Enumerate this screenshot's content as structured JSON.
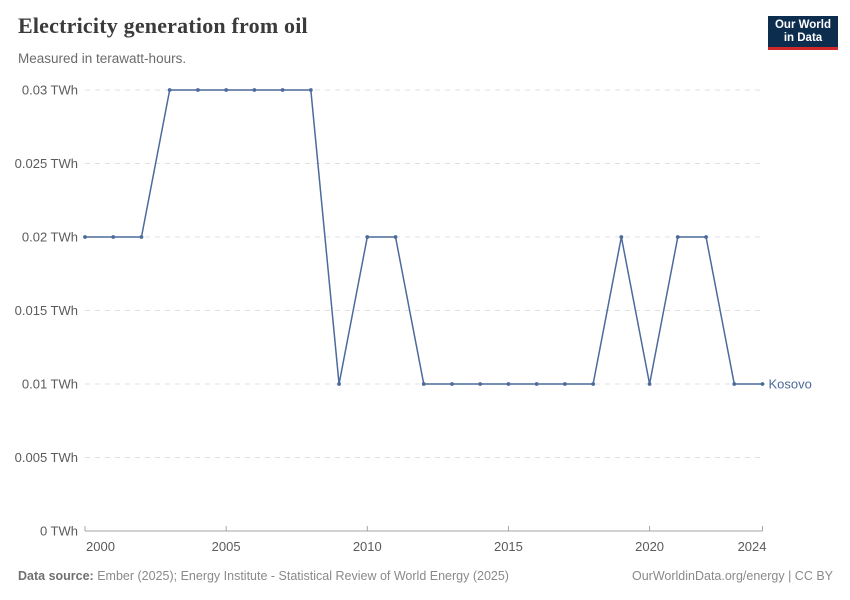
{
  "header": {
    "title": "Electricity generation from oil",
    "subtitle": "Measured in terawatt-hours."
  },
  "logo": {
    "line1": "Our World",
    "line2": "in Data",
    "bg_color": "#0d2d4f",
    "stripe_color": "#cf2a27"
  },
  "chart_data": {
    "type": "line",
    "title": "Electricity generation from oil",
    "subtitle": "Measured in terawatt-hours.",
    "unit": "TWh",
    "x": [
      2000,
      2001,
      2002,
      2003,
      2004,
      2005,
      2006,
      2007,
      2008,
      2009,
      2010,
      2011,
      2012,
      2013,
      2014,
      2015,
      2016,
      2017,
      2018,
      2019,
      2020,
      2021,
      2022,
      2023,
      2024
    ],
    "series": [
      {
        "name": "Kosovo",
        "color": "#4c6a9c",
        "values": [
          0.02,
          0.02,
          0.02,
          0.03,
          0.03,
          0.03,
          0.03,
          0.03,
          0.03,
          0.01,
          0.02,
          0.02,
          0.01,
          0.01,
          0.01,
          0.01,
          0.01,
          0.01,
          0.01,
          0.02,
          0.01,
          0.02,
          0.02,
          0.01,
          0.01
        ]
      }
    ],
    "xlim": [
      2000,
      2024
    ],
    "ylim": [
      0,
      0.03
    ],
    "xticks": [
      2000,
      2005,
      2010,
      2015,
      2020,
      2024
    ],
    "yticks": [
      0,
      0.005,
      0.01,
      0.015,
      0.02,
      0.025,
      0.03
    ],
    "ytick_labels": [
      "0 TWh",
      "0.005 TWh",
      "0.01 TWh",
      "0.015 TWh",
      "0.02 TWh",
      "0.025 TWh",
      "0.03 TWh"
    ],
    "grid": "horizontal dashed",
    "legend_position": "end-of-line label",
    "show_markers": true
  },
  "colors": {
    "grid": "#e0e0e0",
    "axis": "#a5a5a5",
    "tick_text": "#5b5b5b",
    "title": "#3b3b3b",
    "subtitle": "#6b6b6b",
    "footer": "#8a8a8a",
    "series_blue": "#4c6a9c"
  },
  "footer": {
    "datasource_label": "Data source:",
    "datasource_text": " Ember (2025); Energy Institute - Statistical Review of World Energy (2025)",
    "attribution": "OurWorldinData.org/energy | CC BY"
  }
}
